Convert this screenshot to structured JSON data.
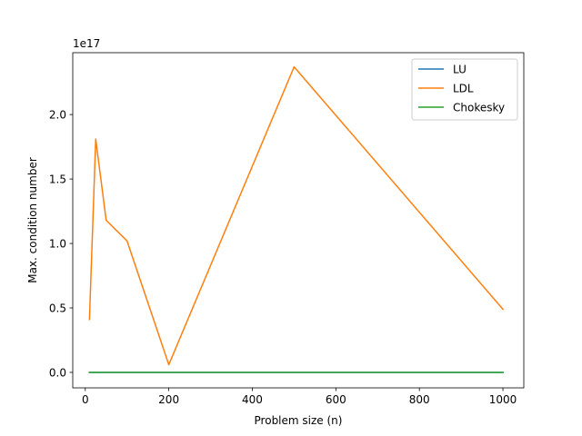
{
  "chart_data": {
    "type": "line",
    "title": "",
    "xlabel": "Problem size (n)",
    "ylabel": "Max. condition number",
    "y_offset_text": "1e17",
    "y_scale_factor": 1e+17,
    "xlim": [
      -30,
      1050
    ],
    "ylim": [
      -0.12,
      2.48
    ],
    "xticks": [
      0,
      200,
      400,
      600,
      800,
      1000
    ],
    "xtick_labels": [
      "0",
      "200",
      "400",
      "600",
      "800",
      "1000"
    ],
    "yticks": [
      0.0,
      0.5,
      1.0,
      1.5,
      2.0
    ],
    "ytick_labels": [
      "0.0",
      "0.5",
      "1.0",
      "1.5",
      "2.0"
    ],
    "grid": false,
    "legend_position": "top-right",
    "x": [
      10,
      25,
      50,
      100,
      200,
      500,
      1000
    ],
    "series": [
      {
        "name": "LU",
        "color": "#1f77b4",
        "values": [
          0.0,
          0.0,
          0.0,
          0.0,
          0.0,
          0.0,
          0.0
        ]
      },
      {
        "name": "LDL",
        "color": "#ff7f0e",
        "values": [
          0.41,
          1.81,
          1.18,
          1.02,
          0.06,
          2.37,
          0.49
        ]
      },
      {
        "name": "Chokesky",
        "color": "#2ca02c",
        "values": [
          0.0,
          0.0,
          0.0,
          0.0,
          0.0,
          0.0,
          0.0
        ]
      }
    ]
  }
}
